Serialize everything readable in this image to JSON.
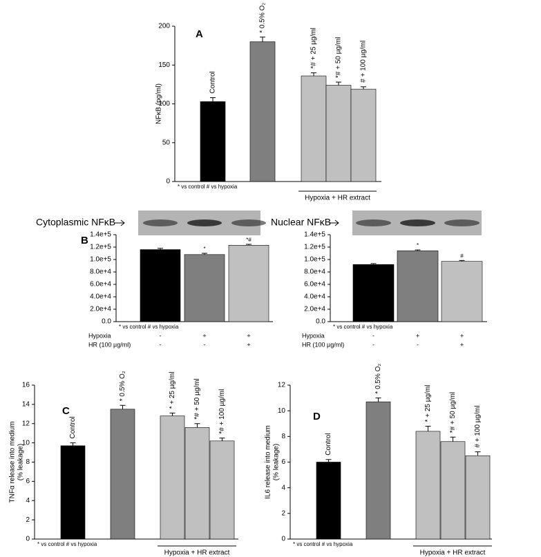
{
  "chart_data": [
    {
      "type": "bar",
      "panel": "A",
      "y_label": [
        "NFκB (pg/ml)"
      ],
      "ylim": [
        0,
        200
      ],
      "yticks": [
        0,
        50,
        100,
        150,
        200
      ],
      "values": [
        103,
        180,
        136,
        124,
        119
      ],
      "errors": [
        5,
        6,
        4,
        4,
        3
      ],
      "colors": [
        "#000000",
        "#7f7f7f",
        "#c0c0c0",
        "#c0c0c0",
        "#c0c0c0"
      ],
      "bar_labels": [
        "Control",
        "* 0.5% O₂",
        "*# + 25 µg/ml",
        "*# + 50 µg/ml",
        "# + 100 µg/ml"
      ],
      "footnote": "* vs control  # vs hypoxia",
      "group_label": "Hypoxia + HR extract"
    },
    {
      "type": "bar",
      "panel": "B",
      "blot_label": "Cytoplasmic NFκB",
      "ylim": [
        0,
        140000
      ],
      "yticks": [
        {
          "value": 0,
          "label": "0.0"
        },
        {
          "value": 20000,
          "label": "2.0e+4"
        },
        {
          "value": 40000,
          "label": "4.0e+4"
        },
        {
          "value": 60000,
          "label": "6.0e+4"
        },
        {
          "value": 80000,
          "label": "8.0e+4"
        },
        {
          "value": 100000,
          "label": "1.0e+5"
        },
        {
          "value": 120000,
          "label": "1.2e+5"
        },
        {
          "value": 140000,
          "label": "1.4e+5"
        }
      ],
      "values": [
        116000,
        108000,
        123000
      ],
      "errors": [
        2000,
        2000,
        1500
      ],
      "colors": [
        "#000000",
        "#7f7f7f",
        "#c0c0c0"
      ],
      "bar_labels": [
        null,
        "*",
        "*#"
      ],
      "footnote": "* vs control  # vs hypoxia",
      "table": [
        {
          "label": "Hypoxia",
          "values": [
            "-",
            "+",
            "+"
          ]
        },
        {
          "label": "HR (100 µg/ml)",
          "values": [
            "-",
            "-",
            "+"
          ]
        }
      ]
    },
    {
      "type": "bar",
      "blot_label": "Nuclear NFκB",
      "ylim": [
        0,
        140000
      ],
      "yticks": [
        {
          "value": 0,
          "label": "0.0"
        },
        {
          "value": 20000,
          "label": "2.0e+4"
        },
        {
          "value": 40000,
          "label": "4.0e+4"
        },
        {
          "value": 60000,
          "label": "6.0e+4"
        },
        {
          "value": 80000,
          "label": "8.0e+4"
        },
        {
          "value": 100000,
          "label": "1.0e+5"
        },
        {
          "value": 120000,
          "label": "1.2e+5"
        },
        {
          "value": 140000,
          "label": "1.4e+5"
        }
      ],
      "values": [
        92000,
        114000,
        97000
      ],
      "errors": [
        1500,
        1500,
        1500
      ],
      "colors": [
        "#000000",
        "#7f7f7f",
        "#c0c0c0"
      ],
      "bar_labels": [
        null,
        "*",
        "#"
      ],
      "footnote": "* vs control  # vs hypoxia",
      "table": [
        {
          "label": "Hypoxia",
          "values": [
            "-",
            "+",
            "+"
          ]
        },
        {
          "label": "HR (100 µg/ml)",
          "values": [
            "-",
            "-",
            "+"
          ]
        }
      ]
    },
    {
      "type": "bar",
      "panel": "C",
      "y_label": [
        "TNFα release into medium",
        "(% leakage)"
      ],
      "ylim": [
        0,
        16
      ],
      "yticks": [
        0,
        2,
        4,
        6,
        8,
        10,
        12,
        14,
        16
      ],
      "values": [
        9.7,
        13.5,
        12.8,
        11.6,
        10.2
      ],
      "errors": [
        0.3,
        0.4,
        0.3,
        0.4,
        0.3
      ],
      "colors": [
        "#000000",
        "#7f7f7f",
        "#c0c0c0",
        "#c0c0c0",
        "#c0c0c0"
      ],
      "bar_labels": [
        "Control",
        "* 0.5% O₂",
        "* + 25 µg/ml",
        "*# + 50 µg/ml",
        "*# + 100 µg/ml"
      ],
      "footnote": "* vs control  # vs hypoxia",
      "group_label": "Hypoxia + HR extract"
    },
    {
      "type": "bar",
      "panel": "D",
      "y_label": [
        "IL6 release into medium",
        "(% leakage)"
      ],
      "ylim": [
        0,
        12
      ],
      "yticks": [
        0,
        2,
        4,
        6,
        8,
        10,
        12
      ],
      "values": [
        6.0,
        10.7,
        8.4,
        7.6,
        6.5
      ],
      "errors": [
        0.2,
        0.3,
        0.4,
        0.35,
        0.3
      ],
      "colors": [
        "#000000",
        "#7f7f7f",
        "#c0c0c0",
        "#c0c0c0",
        "#c0c0c0"
      ],
      "bar_labels": [
        "Control",
        "* 0.5% O₂",
        "* + 25 µg/ml",
        "*# + 50 µg/ml",
        "# + 100 µg/ml"
      ],
      "footnote": "* vs control  # vs hypoxia",
      "group_label": "Hypoxia + HR extract"
    }
  ]
}
